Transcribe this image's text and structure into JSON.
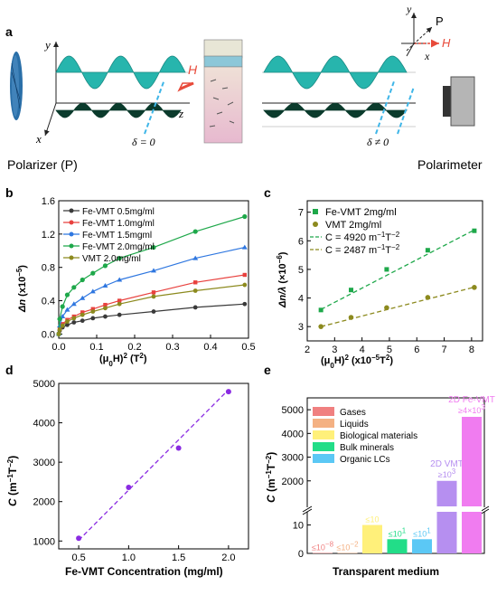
{
  "panel_labels": {
    "a": "a",
    "b": "b",
    "c": "c",
    "d": "d",
    "e": "e"
  },
  "panel_a": {
    "left_label": "Polarizer (P)",
    "right_label": "Polarimeter",
    "delta_left": "δ = 0",
    "delta_right": "δ ≠ 0",
    "axis_y": "y",
    "axis_x": "x",
    "axis_z": "z",
    "field_H": "H",
    "inset_y": "y",
    "inset_P": "P",
    "inset_H": "H",
    "inset_x": "x",
    "colors": {
      "wave_top": "#27b5ad",
      "wave_bottom": "#0b3b2c",
      "field": "#e84a3a",
      "dashed": "#3fb6e8"
    }
  },
  "chart_data": [
    {
      "panel": "b",
      "type": "line",
      "xlabel": "(μ0H)2 (T2)",
      "xlabel_parts": [
        "(μ",
        "0",
        "H)",
        "2",
        " (T",
        "2",
        ")"
      ],
      "ylabel_parts": [
        "Δn",
        " (x10",
        "−5",
        ")"
      ],
      "xlim": [
        0,
        0.5
      ],
      "ylim": [
        -0.05,
        1.6
      ],
      "xticks": [
        "0.0",
        "0.1",
        "0.2",
        "0.3",
        "0.4",
        "0.5"
      ],
      "yticks": [
        "0.0",
        "0.4",
        "0.8",
        "1.2",
        "1.6"
      ],
      "legend_position": "top-left",
      "x": [
        0,
        0.0025,
        0.01,
        0.0225,
        0.04,
        0.0625,
        0.09,
        0.1225,
        0.16,
        0.25,
        0.36,
        0.49
      ],
      "series": [
        {
          "name": "Fe-VMT 0.5mg/ml",
          "color": "#3a3a3a",
          "values": [
            0,
            0.04,
            0.08,
            0.11,
            0.14,
            0.16,
            0.19,
            0.21,
            0.23,
            0.27,
            0.32,
            0.36
          ]
        },
        {
          "name": "Fe-VMT 1.0mg/ml",
          "color": "#e8413e",
          "values": [
            0,
            0.06,
            0.12,
            0.17,
            0.21,
            0.26,
            0.3,
            0.35,
            0.4,
            0.5,
            0.62,
            0.71
          ]
        },
        {
          "name": "Fe-VMT 1.5mgml",
          "color": "#2f77e0",
          "values": [
            0,
            0.1,
            0.21,
            0.29,
            0.36,
            0.43,
            0.51,
            0.58,
            0.65,
            0.76,
            0.91,
            1.04
          ]
        },
        {
          "name": "Fe-VMT 2.0mg/ml",
          "color": "#1ea84a",
          "values": [
            0,
            0.18,
            0.33,
            0.47,
            0.56,
            0.65,
            0.73,
            0.82,
            0.91,
            1.04,
            1.23,
            1.41
          ]
        },
        {
          "name": "VMT 2.0mg/ml",
          "color": "#8c8a1e",
          "values": [
            0,
            0.05,
            0.1,
            0.15,
            0.19,
            0.23,
            0.27,
            0.31,
            0.36,
            0.45,
            0.52,
            0.59
          ]
        }
      ]
    },
    {
      "panel": "c",
      "type": "scatter",
      "xlabel": "(μ0H)2 (x10−5T2)",
      "xlabel_parts": [
        "(μ",
        "0",
        "H)",
        "2",
        " (x10",
        "−5",
        "T",
        "2",
        ")"
      ],
      "ylabel_parts": [
        "Δn/λ",
        " (×10",
        "−6",
        ")"
      ],
      "xlim": [
        2,
        8.4
      ],
      "ylim": [
        2.5,
        7.4
      ],
      "xticks": [
        "2",
        "3",
        "4",
        "5",
        "6",
        "7",
        "8"
      ],
      "yticks": [
        "3",
        "4",
        "5",
        "6",
        "7"
      ],
      "legend_position": "top-left",
      "series": [
        {
          "name": "Fe-VMT 2mg/ml",
          "color": "#1ea84a",
          "x": [
            2.5,
            3.6,
            4.9,
            6.4,
            8.1
          ],
          "values": [
            3.58,
            4.28,
            5.0,
            5.67,
            6.35
          ]
        },
        {
          "name": "VMT 2mg/ml",
          "color": "#8c8a1e",
          "x": [
            2.5,
            3.6,
            4.9,
            6.4,
            8.1
          ],
          "values": [
            3.0,
            3.32,
            3.66,
            4.02,
            4.37
          ]
        }
      ],
      "fits": [
        {
          "name": "C = 4920 m−1T−2",
          "parts": [
            "C = 4920 m",
            "−1",
            "T",
            "−2"
          ],
          "color": "#1ea84a",
          "x": [
            2.5,
            8.1
          ],
          "values": [
            3.6,
            6.38
          ]
        },
        {
          "name": "C = 2487 m−1T−2",
          "parts": [
            "C = 2487 m",
            "−1",
            "T",
            "−2"
          ],
          "color": "#8c8a1e",
          "x": [
            2.5,
            8.1
          ],
          "values": [
            3.0,
            4.38
          ]
        }
      ]
    },
    {
      "panel": "d",
      "type": "scatter",
      "xlabel": "Fe-VMT Concentration (mg/ml)",
      "ylabel_parts": [
        "C",
        " (m",
        "−1",
        "T",
        "−2",
        ")"
      ],
      "xlim": [
        0.3,
        2.2
      ],
      "ylim": [
        800,
        5000
      ],
      "xticks": [
        "0.5",
        "1.0",
        "1.5",
        "2.0"
      ],
      "xtick_values": [
        0.5,
        1.0,
        1.5,
        2.0
      ],
      "yticks": [
        "1000",
        "2000",
        "3000",
        "4000",
        "5000"
      ],
      "color": "#8a2be2",
      "x": [
        0.5,
        1.0,
        1.5,
        2.0
      ],
      "values": [
        1070,
        2360,
        3360,
        4790
      ],
      "fit": {
        "x": [
          0.5,
          2.0
        ],
        "values": [
          1020,
          4840
        ]
      }
    },
    {
      "panel": "e",
      "type": "bar",
      "xlabel": "Transparent medium",
      "ylabel_parts": [
        "C",
        " (m",
        "−1",
        "T",
        "−2",
        ")"
      ],
      "axis_break": true,
      "yticks_lower": [
        "0",
        "10"
      ],
      "yticks_upper": [
        "2000",
        "3000",
        "4000",
        "5000"
      ],
      "categories": [
        "Gases",
        "Liquids",
        "Biological materials",
        "Bulk minerals",
        "Organic LCs",
        "2D VMT",
        "2D Fe-VMT"
      ],
      "colors": [
        "#f08080",
        "#f4b183",
        "#fff07a",
        "#22dd88",
        "#5bc8f5",
        "#b68ff0",
        "#f07cf0"
      ],
      "values": [
        1e-08,
        0.01,
        10,
        5,
        5,
        2000,
        4700
      ],
      "bar_labels": [
        {
          "base": "≤10",
          "sup": "−8"
        },
        {
          "base": "≤10",
          "sup": "−2"
        },
        {
          "base": "≤10",
          "sup": ""
        },
        {
          "base": "≤10",
          "sup": "1"
        },
        {
          "base": "≤10",
          "sup": "1"
        },
        {
          "base": "≥10",
          "sup": "3",
          "prefix": "2D VMT"
        },
        {
          "base": "≥4×10",
          "sup": "3",
          "prefix": "2D Fe-VMT"
        }
      ],
      "legend": [
        "Gases",
        "Liquids",
        "Biological materials",
        "Bulk minerals",
        "Organic LCs"
      ],
      "legend_position": "top-left"
    }
  ]
}
